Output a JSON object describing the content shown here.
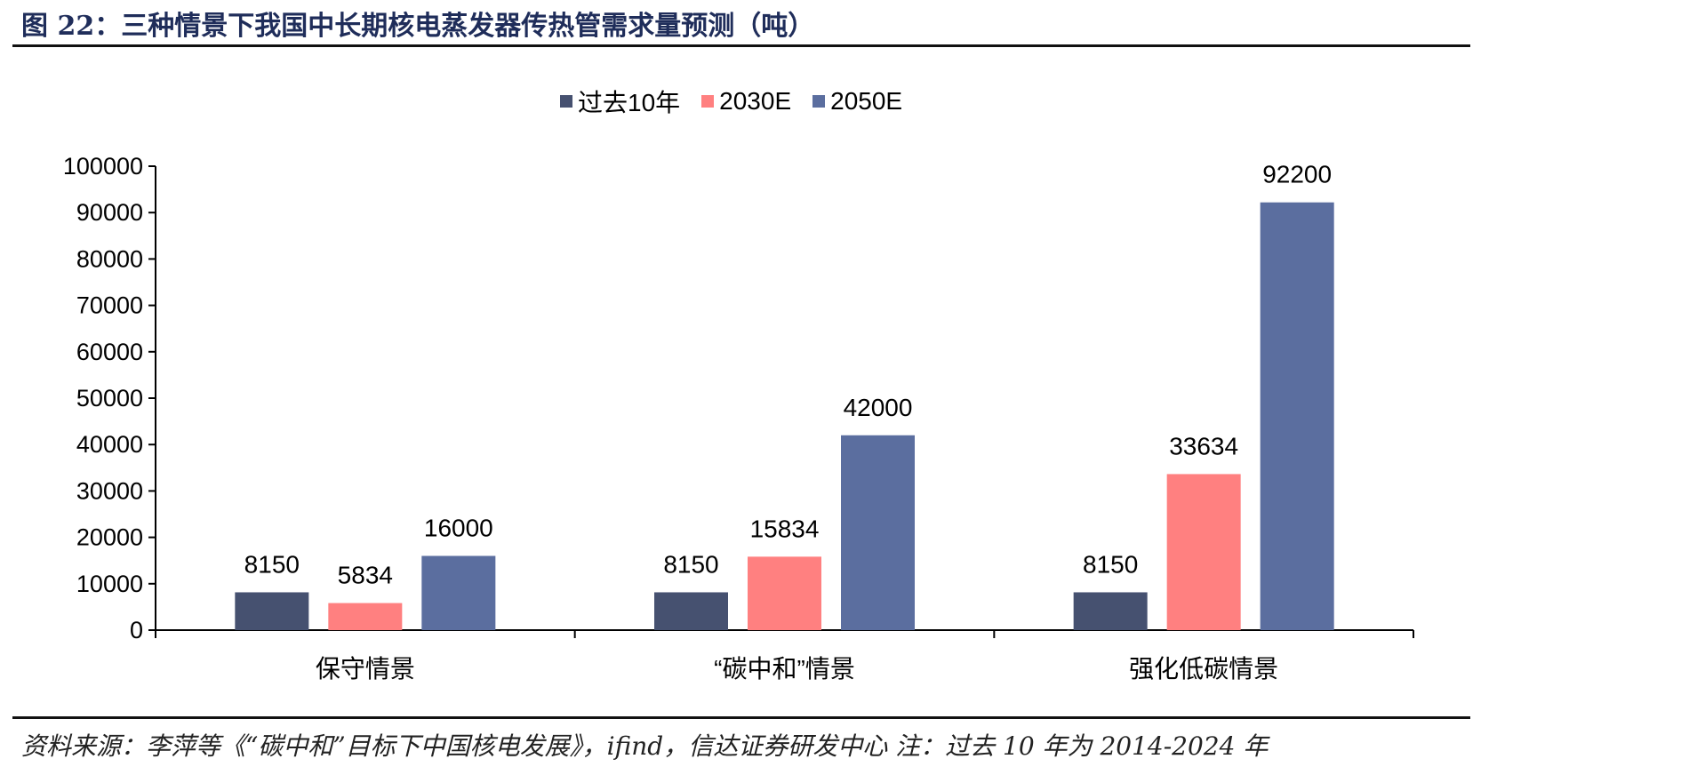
{
  "header": {
    "title": "图 22：三种情景下我国中长期核电蒸发器传热管需求量预测（吨）"
  },
  "footer": {
    "source": "资料来源：李萍等《“碳中和”目标下中国核电发展》，ifind，信达证券研发中心  注：过去 10 年为 2014-2024 年"
  },
  "chart_data": {
    "type": "bar",
    "title": "",
    "xlabel": "",
    "ylabel": "",
    "categories": [
      "保守情景",
      "“碳中和”情景",
      "强化低碳情景"
    ],
    "series": [
      {
        "name": "过去10年",
        "values": [
          8150,
          8150,
          8150
        ],
        "color": "#465170"
      },
      {
        "name": "2030E",
        "values": [
          5834,
          15834,
          33634
        ],
        "color": "#ff8080"
      },
      {
        "name": "2050E",
        "values": [
          16000,
          42000,
          92200
        ],
        "color": "#5b6e9f"
      }
    ],
    "ylim": [
      0,
      100000
    ],
    "yticks": [
      0,
      10000,
      20000,
      30000,
      40000,
      50000,
      60000,
      70000,
      80000,
      90000,
      100000
    ],
    "legend": "top-center",
    "grid": false,
    "data_labels": true
  }
}
